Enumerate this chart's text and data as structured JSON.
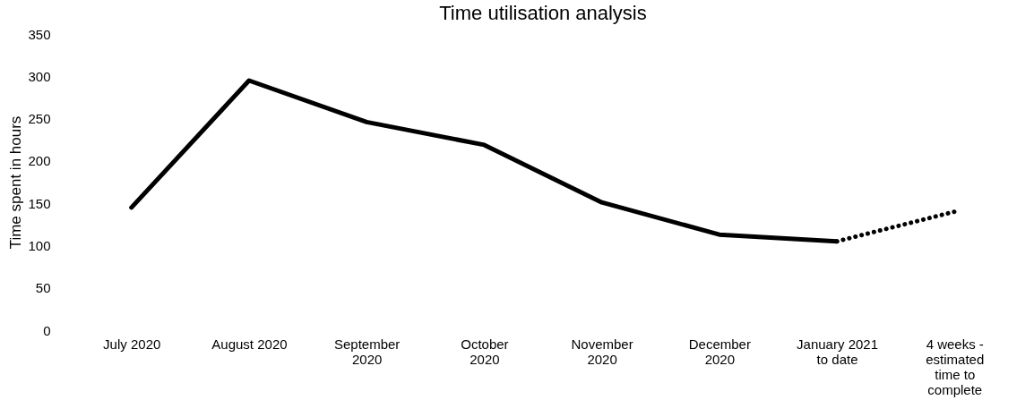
{
  "chart_data": {
    "type": "line",
    "title": "Time utilisation analysis",
    "ylabel": "Time spent in hours",
    "categories": [
      "July 2020",
      "August 2020",
      "September\n2020",
      "October\n2020",
      "November\n2020",
      "December\n2020",
      "January 2021\nto date",
      "4 weeks -\nestimated\ntime to\ncomplete"
    ],
    "series": [
      {
        "color": "#000000",
        "line_style": "solid",
        "values": [
          145,
          295,
          246,
          219,
          151,
          113,
          105,
          null
        ]
      },
      {
        "color": "#000000",
        "line_style": "dotted",
        "values": [
          null,
          null,
          null,
          null,
          null,
          null,
          105,
          140
        ]
      }
    ],
    "ylim": [
      0,
      350
    ],
    "yticks": [
      0,
      50,
      100,
      150,
      200,
      250,
      300,
      350
    ],
    "grid": false,
    "marker": "none"
  }
}
